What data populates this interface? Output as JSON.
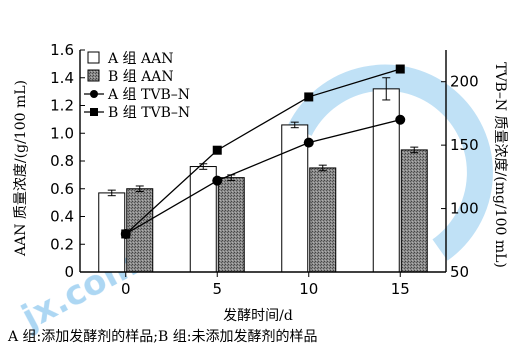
{
  "chart_data": {
    "type": "bar",
    "categories": [
      "0",
      "5",
      "10",
      "15"
    ],
    "xlabel": "发酵时间/d",
    "ylabel_left": "AAN 质量浓度/(g/100 mL)",
    "ylabel_right": "TVB–N 质量浓度/(mg/100 mL)",
    "ylim_left": [
      0,
      1.6
    ],
    "yticks_left": [
      "0",
      "0.2",
      "0.4",
      "0.6",
      "0.8",
      "1.0",
      "1.2",
      "1.4",
      "1.6"
    ],
    "ylim_right": [
      50,
      225
    ],
    "yticks_right": [
      "50",
      "100",
      "150",
      "200"
    ],
    "bar_series": [
      {
        "name": "A 组 AAN",
        "values": [
          0.57,
          0.76,
          1.06,
          1.32
        ],
        "errors": [
          0.02,
          0.02,
          0.02,
          0.08
        ],
        "color": "#ffffff"
      },
      {
        "name": "B 组 AAN",
        "values": [
          0.6,
          0.68,
          0.75,
          0.88
        ],
        "errors": [
          0.02,
          0.02,
          0.02,
          0.02
        ],
        "color": "#777777"
      }
    ],
    "line_series": [
      {
        "name": "A 组 TVB–N",
        "marker": "circle",
        "values": [
          80,
          122,
          152,
          170
        ]
      },
      {
        "name": "B 组 TVB–N",
        "marker": "square",
        "values": [
          80,
          146,
          188,
          210
        ]
      }
    ],
    "legend_position": "top-left"
  },
  "caption": "A 组:添加发酵剂的样品;B 组:未添加发酵剂的样品",
  "watermark": {
    "text": "jx.com",
    "color": "#4aa8e0"
  }
}
